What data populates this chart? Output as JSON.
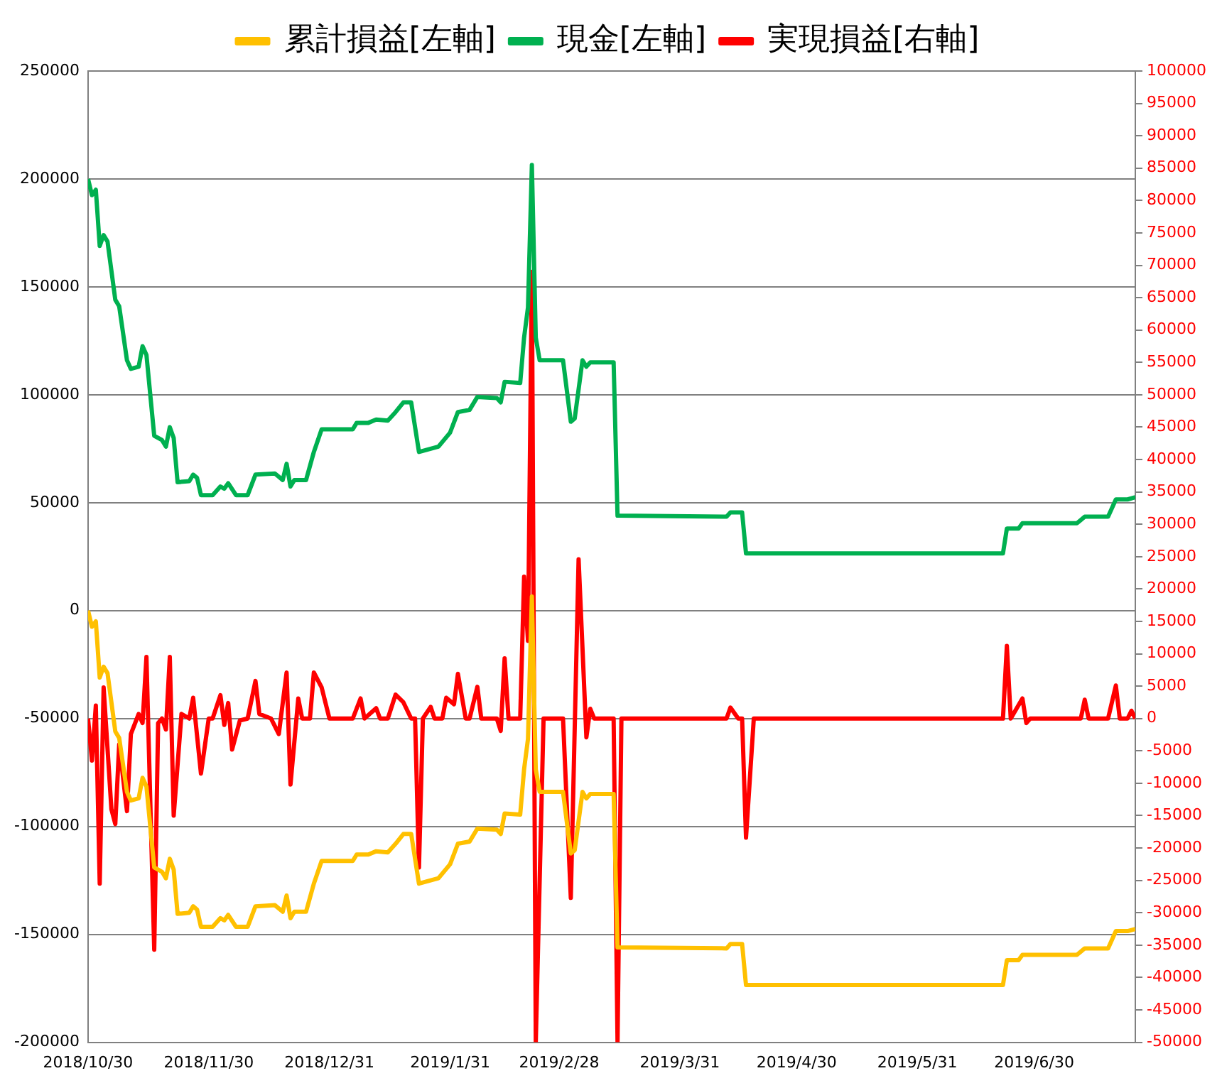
{
  "chart_data": {
    "type": "line",
    "x": [
      "2018-10-30",
      "2018-10-31",
      "2018-11-01",
      "2018-11-02",
      "2018-11-03",
      "2018-11-04",
      "2018-11-06",
      "2018-11-07",
      "2018-11-09",
      "2018-11-10",
      "2018-11-12",
      "2018-11-13",
      "2018-11-14",
      "2018-11-16",
      "2018-11-18",
      "2018-11-19",
      "2018-11-20",
      "2018-11-21",
      "2018-11-22",
      "2018-11-25",
      "2018-11-26",
      "2018-11-27",
      "2018-11-28",
      "2018-12-01",
      "2018-12-03",
      "2018-12-04",
      "2018-12-05",
      "2018-12-07",
      "2018-12-10",
      "2018-12-12",
      "2018-12-17",
      "2018-12-19",
      "2018-12-20",
      "2018-12-21",
      "2018-12-22",
      "2018-12-25",
      "2018-12-27",
      "2018-12-29",
      "2019-01-06",
      "2019-01-07",
      "2019-01-10",
      "2019-01-12",
      "2019-01-15",
      "2019-01-17",
      "2019-01-19",
      "2019-01-21",
      "2019-01-23",
      "2019-01-25",
      "2019-01-28",
      "2019-01-31",
      "2019-02-02",
      "2019-02-05",
      "2019-02-07",
      "2019-02-12",
      "2019-02-13",
      "2019-02-14",
      "2019-02-18",
      "2019-02-19",
      "2019-02-20",
      "2019-02-21",
      "2019-02-22",
      "2019-02-23",
      "2019-03-01",
      "2019-03-03",
      "2019-03-04",
      "2019-03-06",
      "2019-03-07",
      "2019-03-08",
      "2019-03-14",
      "2019-03-15",
      "2019-04-12",
      "2019-04-13",
      "2019-04-16",
      "2019-04-17",
      "2019-06-22",
      "2019-06-23",
      "2019-06-26",
      "2019-06-27",
      "2019-07-11",
      "2019-07-13",
      "2019-07-19",
      "2019-07-21",
      "2019-07-24",
      "2019-07-26"
    ],
    "series": [
      {
        "name": "累計損益[左軸]",
        "color": "#ffc000",
        "values": [
          0,
          -7500,
          -5000,
          -31000,
          -26000,
          -29000,
          -56000,
          -59000,
          -84000,
          -88000,
          -87000,
          -77500,
          -81500,
          -119000,
          -121000,
          -124000,
          -115000,
          -120000,
          -140500,
          -140000,
          -137000,
          -138500,
          -146500,
          -146500,
          -142500,
          -143500,
          -141000,
          -146500,
          -146500,
          -137000,
          -136500,
          -139500,
          -132000,
          -142500,
          -139500,
          -139500,
          -126500,
          -116000,
          -116000,
          -113000,
          -113000,
          -111500,
          -112000,
          -108000,
          -103500,
          -103500,
          -126500,
          -125500,
          -124000,
          -117500,
          -108000,
          -107000,
          -101000,
          -101500,
          -103500,
          -94000,
          -94500,
          -73500,
          -59500,
          6500,
          -73500,
          -84000,
          -84000,
          -112500,
          -111000,
          -84000,
          -87000,
          -85000,
          -85000,
          -156000,
          -156500,
          -154500,
          -154500,
          -173500,
          -173500,
          -162000,
          -162000,
          -159500,
          -159500,
          -156500,
          -156500,
          -148500,
          -148500,
          -147500
        ]
      },
      {
        "name": "現金[左軸]",
        "color": "#00b050",
        "values": [
          200000,
          192500,
          195000,
          169000,
          174000,
          171000,
          144000,
          141000,
          116000,
          112000,
          113000,
          122500,
          118500,
          81000,
          79000,
          76000,
          85000,
          80000,
          59500,
          60000,
          63000,
          61500,
          53500,
          53500,
          57500,
          56500,
          59000,
          53500,
          53500,
          63000,
          63500,
          60500,
          68000,
          57500,
          60500,
          60500,
          73500,
          84000,
          84000,
          87000,
          87000,
          88500,
          88000,
          92000,
          96500,
          96500,
          73500,
          74500,
          76000,
          82500,
          92000,
          93000,
          99000,
          98500,
          96500,
          106000,
          105500,
          126500,
          140500,
          206500,
          126500,
          116000,
          116000,
          87500,
          89000,
          116000,
          113000,
          115000,
          115000,
          44000,
          43500,
          45500,
          45500,
          26500,
          26500,
          38000,
          38000,
          40500,
          40500,
          43500,
          43500,
          51500,
          51500,
          52500
        ]
      },
      {
        "name": "実現損益[右軸]",
        "color": "#ff0000",
        "axis": "y2",
        "x": [
          "2018-10-30",
          "2018-10-31",
          "2018-11-01",
          "2018-11-02",
          "2018-11-03",
          "2018-11-05",
          "2018-11-06",
          "2018-11-07",
          "2018-11-09",
          "2018-11-10",
          "2018-11-12",
          "2018-11-13",
          "2018-11-14",
          "2018-11-16",
          "2018-11-17",
          "2018-11-18",
          "2018-11-19",
          "2018-11-20",
          "2018-11-21",
          "2018-11-23",
          "2018-11-25",
          "2018-11-26",
          "2018-11-28",
          "2018-11-30",
          "2018-12-01",
          "2018-12-03",
          "2018-12-04",
          "2018-12-05",
          "2018-12-06",
          "2018-12-08",
          "2018-12-10",
          "2018-12-12",
          "2018-12-13",
          "2018-12-16",
          "2018-12-18",
          "2018-12-20",
          "2018-12-21",
          "2018-12-23",
          "2018-12-24",
          "2018-12-26",
          "2018-12-27",
          "2018-12-29",
          "2018-12-31",
          "2019-01-06",
          "2019-01-08",
          "2019-01-09",
          "2019-01-12",
          "2019-01-13",
          "2019-01-15",
          "2019-01-17",
          "2019-01-19",
          "2019-01-21",
          "2019-01-22",
          "2019-01-23",
          "2019-01-24",
          "2019-01-26",
          "2019-01-27",
          "2019-01-29",
          "2019-01-30",
          "2019-02-01",
          "2019-02-02",
          "2019-02-04",
          "2019-02-05",
          "2019-02-07",
          "2019-02-08",
          "2019-02-12",
          "2019-02-13",
          "2019-02-14",
          "2019-02-15",
          "2019-02-18",
          "2019-02-19",
          "2019-02-20",
          "2019-02-21",
          "2019-02-22",
          "2019-02-24",
          "2019-03-01",
          "2019-03-03",
          "2019-03-05",
          "2019-03-07",
          "2019-03-08",
          "2019-03-09",
          "2019-03-14",
          "2019-03-15",
          "2019-03-16",
          "2019-04-12",
          "2019-04-13",
          "2019-04-15",
          "2019-04-16",
          "2019-04-17",
          "2019-04-19",
          "2019-06-22",
          "2019-06-23",
          "2019-06-24",
          "2019-06-27",
          "2019-06-28",
          "2019-06-29",
          "2019-07-12",
          "2019-07-13",
          "2019-07-14",
          "2019-07-19",
          "2019-07-21",
          "2019-07-22",
          "2019-07-24",
          "2019-07-25",
          "2019-07-26"
        ],
        "values": [
          0,
          -6500,
          2000,
          -25500,
          4800,
          -14000,
          -16300,
          -4000,
          -14300,
          -2400,
          700,
          -700,
          9500,
          -35700,
          -700,
          0,
          -1700,
          9500,
          -15000,
          700,
          0,
          3200,
          -8500,
          0,
          0,
          3600,
          -1000,
          2400,
          -4800,
          -300,
          0,
          5800,
          700,
          0,
          -2400,
          7100,
          -10200,
          3100,
          0,
          0,
          7100,
          4800,
          0,
          0,
          3100,
          0,
          1600,
          0,
          0,
          3700,
          2500,
          0,
          0,
          -23000,
          0,
          1800,
          0,
          0,
          3200,
          2200,
          6900,
          0,
          0,
          4900,
          0,
          0,
          -1900,
          9300,
          0,
          0,
          21900,
          12000,
          69000,
          -50000,
          0,
          0,
          -27700,
          24600,
          -2900,
          1500,
          0,
          0,
          -50000,
          0,
          0,
          1700,
          0,
          0,
          -18400,
          0,
          0,
          11200,
          0,
          3100,
          -700,
          0,
          0,
          2900,
          0,
          0,
          5100,
          0,
          0,
          1200,
          0
        ]
      }
    ],
    "xlim": [
      "2018-10-30",
      "2019-07-26"
    ],
    "xticks": [
      {
        "value": "2018-10-30",
        "label": "2018/10/30"
      },
      {
        "value": "2018-11-30",
        "label": "2018/11/30"
      },
      {
        "value": "2018-12-31",
        "label": "2018/12/31"
      },
      {
        "value": "2019-01-31",
        "label": "2019/1/31"
      },
      {
        "value": "2019-02-28",
        "label": "2019/2/28"
      },
      {
        "value": "2019-03-31",
        "label": "2019/3/31"
      },
      {
        "value": "2019-04-30",
        "label": "2019/4/30"
      },
      {
        "value": "2019-05-31",
        "label": "2019/5/31"
      },
      {
        "value": "2019-06-30",
        "label": "2019/6/30"
      }
    ],
    "ylim": [
      -200000,
      250000
    ],
    "yticks": [
      -200000,
      -150000,
      -100000,
      -50000,
      0,
      50000,
      100000,
      150000,
      200000,
      250000
    ],
    "y2lim": [
      -50000,
      100000
    ],
    "y2ticks": [
      -50000,
      -45000,
      -40000,
      -35000,
      -30000,
      -25000,
      -20000,
      -15000,
      -10000,
      -5000,
      0,
      5000,
      10000,
      15000,
      20000,
      25000,
      30000,
      35000,
      40000,
      45000,
      50000,
      55000,
      60000,
      65000,
      70000,
      75000,
      80000,
      85000,
      90000,
      95000,
      100000
    ],
    "grid": "y",
    "legend": "top",
    "marker": "none",
    "line_style": "solid"
  }
}
